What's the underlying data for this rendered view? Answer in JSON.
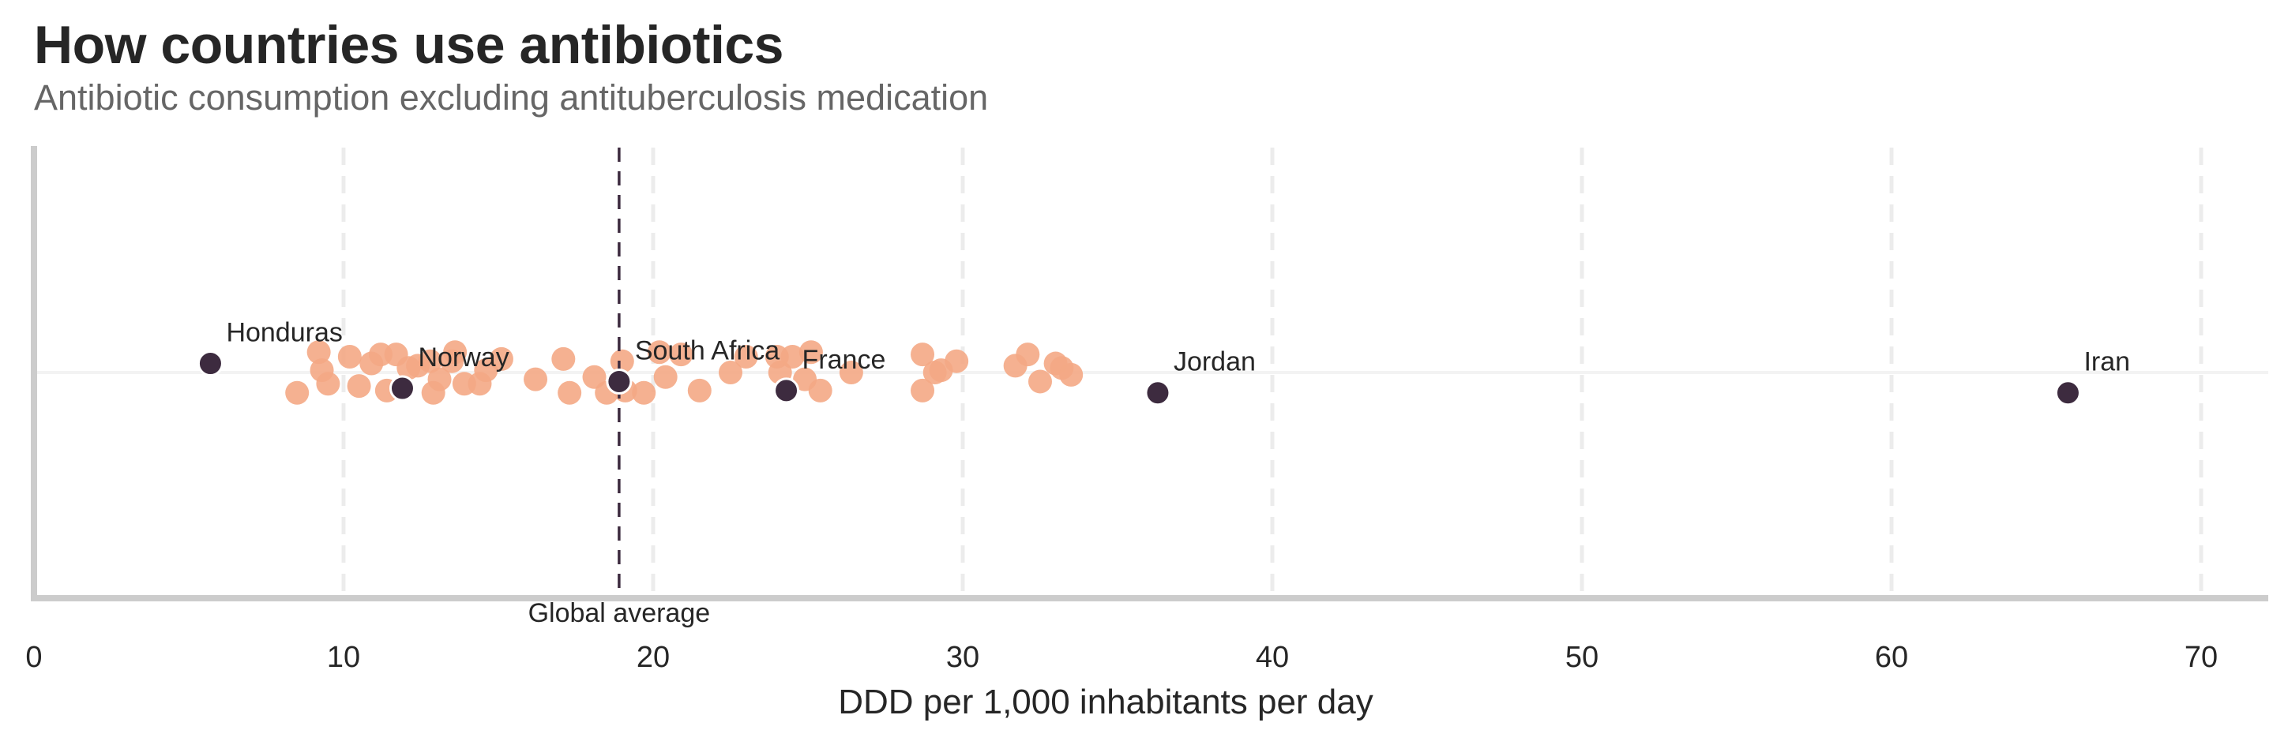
{
  "header": {
    "title": "How countries use antibiotics",
    "subtitle": "Antibiotic consumption excluding antituberculosis medication"
  },
  "colors": {
    "highlight": "#3d2b3f",
    "others": "#f4a985",
    "grid": "#ececec",
    "spine": "#cccccc",
    "reference_line": "#3d2b3f"
  },
  "chart_data": {
    "type": "scatter",
    "subtype": "strip",
    "title": "How countries use antibiotics",
    "subtitle": "Antibiotic consumption excluding antituberculosis medication",
    "xlabel": "DDD per 1,000 inhabitants per day",
    "ylabel": "",
    "xlim": [
      0,
      72
    ],
    "xticks": [
      0,
      10,
      20,
      30,
      40,
      50,
      60,
      70
    ],
    "xtick_labels": [
      "0",
      "10",
      "20",
      "30",
      "40",
      "50",
      "60",
      "70"
    ],
    "grid": "vertical dashed",
    "reference_line": {
      "label": "Global average",
      "x": 18.9
    },
    "highlighted": [
      {
        "name": "Honduras",
        "x": 5.7,
        "jitter": -0.04
      },
      {
        "name": "Norway",
        "x": 11.9,
        "jitter": 0.07
      },
      {
        "name": "South Africa",
        "x": 18.9,
        "jitter": 0.04
      },
      {
        "name": "France",
        "x": 24.3,
        "jitter": 0.08
      },
      {
        "name": "Jordan",
        "x": 36.3,
        "jitter": 0.09
      },
      {
        "name": "Iran",
        "x": 65.7,
        "jitter": 0.09
      }
    ],
    "others": [
      {
        "x": 8.5,
        "jitter": 0.09
      },
      {
        "x": 9.2,
        "jitter": -0.09
      },
      {
        "x": 9.3,
        "jitter": -0.01
      },
      {
        "x": 9.5,
        "jitter": 0.05
      },
      {
        "x": 10.2,
        "jitter": -0.07
      },
      {
        "x": 10.5,
        "jitter": 0.06
      },
      {
        "x": 10.9,
        "jitter": -0.04
      },
      {
        "x": 11.2,
        "jitter": -0.08
      },
      {
        "x": 11.4,
        "jitter": 0.08
      },
      {
        "x": 11.7,
        "jitter": -0.08
      },
      {
        "x": 12.1,
        "jitter": -0.02
      },
      {
        "x": 12.4,
        "jitter": -0.03
      },
      {
        "x": 12.8,
        "jitter": -0.05
      },
      {
        "x": 12.9,
        "jitter": 0.09
      },
      {
        "x": 13.1,
        "jitter": 0.03
      },
      {
        "x": 13.5,
        "jitter": -0.05
      },
      {
        "x": 13.6,
        "jitter": -0.09
      },
      {
        "x": 13.9,
        "jitter": 0.05
      },
      {
        "x": 14.4,
        "jitter": 0.05
      },
      {
        "x": 14.6,
        "jitter": -0.01
      },
      {
        "x": 15.1,
        "jitter": -0.06
      },
      {
        "x": 16.2,
        "jitter": 0.03
      },
      {
        "x": 17.1,
        "jitter": -0.06
      },
      {
        "x": 17.3,
        "jitter": 0.09
      },
      {
        "x": 18.1,
        "jitter": 0.02
      },
      {
        "x": 18.5,
        "jitter": 0.09
      },
      {
        "x": 19.0,
        "jitter": -0.05
      },
      {
        "x": 19.1,
        "jitter": 0.08
      },
      {
        "x": 19.7,
        "jitter": 0.09
      },
      {
        "x": 20.2,
        "jitter": -0.09
      },
      {
        "x": 20.4,
        "jitter": 0.02
      },
      {
        "x": 20.9,
        "jitter": -0.08
      },
      {
        "x": 21.5,
        "jitter": 0.08
      },
      {
        "x": 22.5,
        "jitter": 0.0
      },
      {
        "x": 23.0,
        "jitter": -0.07
      },
      {
        "x": 24.0,
        "jitter": -0.07
      },
      {
        "x": 24.1,
        "jitter": 0.0
      },
      {
        "x": 24.5,
        "jitter": -0.07
      },
      {
        "x": 24.9,
        "jitter": 0.03
      },
      {
        "x": 25.1,
        "jitter": -0.09
      },
      {
        "x": 25.4,
        "jitter": 0.08
      },
      {
        "x": 26.4,
        "jitter": 0.0
      },
      {
        "x": 28.7,
        "jitter": -0.08
      },
      {
        "x": 28.7,
        "jitter": 0.08
      },
      {
        "x": 29.1,
        "jitter": 0.0
      },
      {
        "x": 29.3,
        "jitter": -0.01
      },
      {
        "x": 29.8,
        "jitter": -0.05
      },
      {
        "x": 31.7,
        "jitter": -0.03
      },
      {
        "x": 32.1,
        "jitter": -0.08
      },
      {
        "x": 32.5,
        "jitter": 0.04
      },
      {
        "x": 33.0,
        "jitter": -0.04
      },
      {
        "x": 33.2,
        "jitter": -0.02
      },
      {
        "x": 33.5,
        "jitter": 0.01
      }
    ]
  }
}
